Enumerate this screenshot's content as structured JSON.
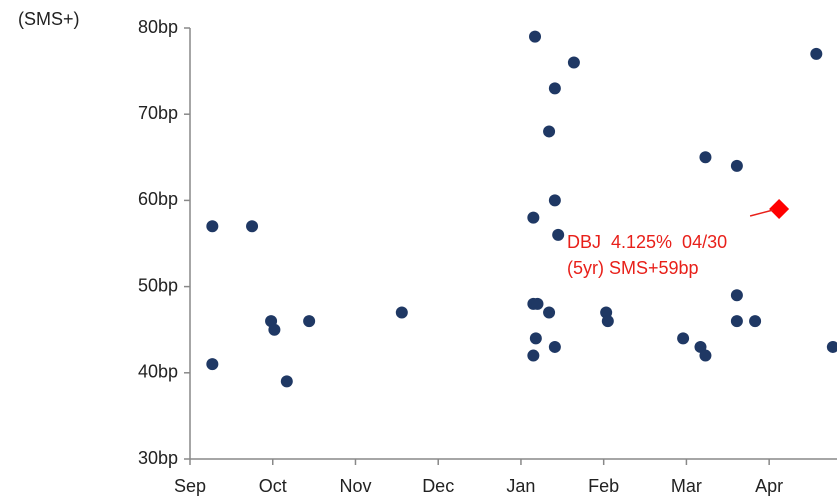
{
  "chart_data": {
    "type": "scatter",
    "y_label": "(SMS+)",
    "xlim": [
      0,
      7.82
    ],
    "xticks": [
      {
        "value": 0,
        "label": "Sep"
      },
      {
        "value": 1,
        "label": "Oct"
      },
      {
        "value": 2,
        "label": "Nov"
      },
      {
        "value": 3,
        "label": "Dec"
      },
      {
        "value": 4,
        "label": "Jan"
      },
      {
        "value": 5,
        "label": "Feb"
      },
      {
        "value": 6,
        "label": "Mar"
      },
      {
        "value": 7,
        "label": "Apr"
      }
    ],
    "ylim": [
      30,
      80
    ],
    "yticks": [
      {
        "value": 30,
        "label": "30bp"
      },
      {
        "value": 40,
        "label": "40bp"
      },
      {
        "value": 50,
        "label": "50bp"
      },
      {
        "value": 60,
        "label": "60bp"
      },
      {
        "value": 70,
        "label": "70bp"
      },
      {
        "value": 80,
        "label": "80bp"
      }
    ],
    "grid": false,
    "series": [
      {
        "color": "#1f3864",
        "marker": "circle",
        "x": [
          0.27,
          0.27,
          0.75,
          0.98,
          1.02,
          1.17,
          1.44,
          2.56,
          4.17,
          4.64,
          4.41,
          4.34,
          4.41,
          4.15,
          4.45,
          4.15,
          4.2,
          4.34,
          4.18,
          4.41,
          4.15,
          5.03,
          5.05,
          5.96,
          6.17,
          6.23,
          6.23,
          6.61,
          6.61,
          6.61,
          6.83,
          7.57,
          7.77
        ],
        "values": [
          57,
          41,
          57,
          46,
          45,
          39,
          46,
          47,
          79,
          76,
          73,
          68,
          60,
          58,
          56,
          48,
          48,
          47,
          44,
          43,
          42,
          47,
          46,
          44,
          43,
          42,
          65,
          64,
          49,
          46,
          46,
          77,
          43
        ]
      },
      {
        "color": "#ff0000",
        "marker": "diamond",
        "x": [
          7.12
        ],
        "values": [
          59
        ]
      }
    ],
    "annotation": {
      "lines": [
        "DBJ  4.125%  04/30",
        "(5yr) SMS+59bp"
      ],
      "color": "#e8201a",
      "x": 7.12,
      "y": 59
    }
  }
}
